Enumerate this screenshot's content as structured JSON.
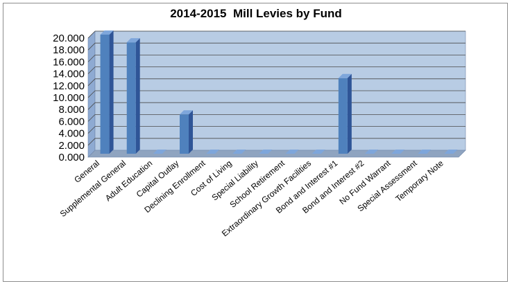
{
  "chart_data": {
    "type": "bar",
    "title": "2014-2015  Mill Levies by Fund",
    "xlabel": "",
    "ylabel": "",
    "categories": [
      "General",
      "Supplemental General",
      "Adult Education",
      "Capital Outlay",
      "Declining Enrollment",
      "Cost of Living",
      "Special Liability",
      "School Retirement",
      "Extraordinary Growth Facilities",
      "Bond and Interest #1",
      "Bond and Interest #2",
      "No Fund Warrant",
      "Special Assessment",
      "Temporary Note"
    ],
    "values": [
      20.0,
      18.7,
      0.0,
      6.6,
      0.0,
      0.0,
      0.0,
      0.0,
      0.0,
      12.7,
      0.0,
      0.0,
      0.0,
      0.0
    ],
    "ylim": [
      0,
      20
    ],
    "yticks": [
      "0.000",
      "2.000",
      "4.000",
      "6.000",
      "8.000",
      "10.000",
      "12.000",
      "14.000",
      "16.000",
      "18.000",
      "20.000"
    ],
    "grid": true,
    "legend": "none",
    "style": "3d-column",
    "colors": {
      "bar_front": "#4f81bd",
      "bar_side": "#2f5597",
      "bar_top": "#7ea6db",
      "plot_back": "#b8cce4",
      "plot_side": "#8eaad2",
      "floor": "#8fa4c0",
      "grid": "#4a4a4a"
    }
  }
}
